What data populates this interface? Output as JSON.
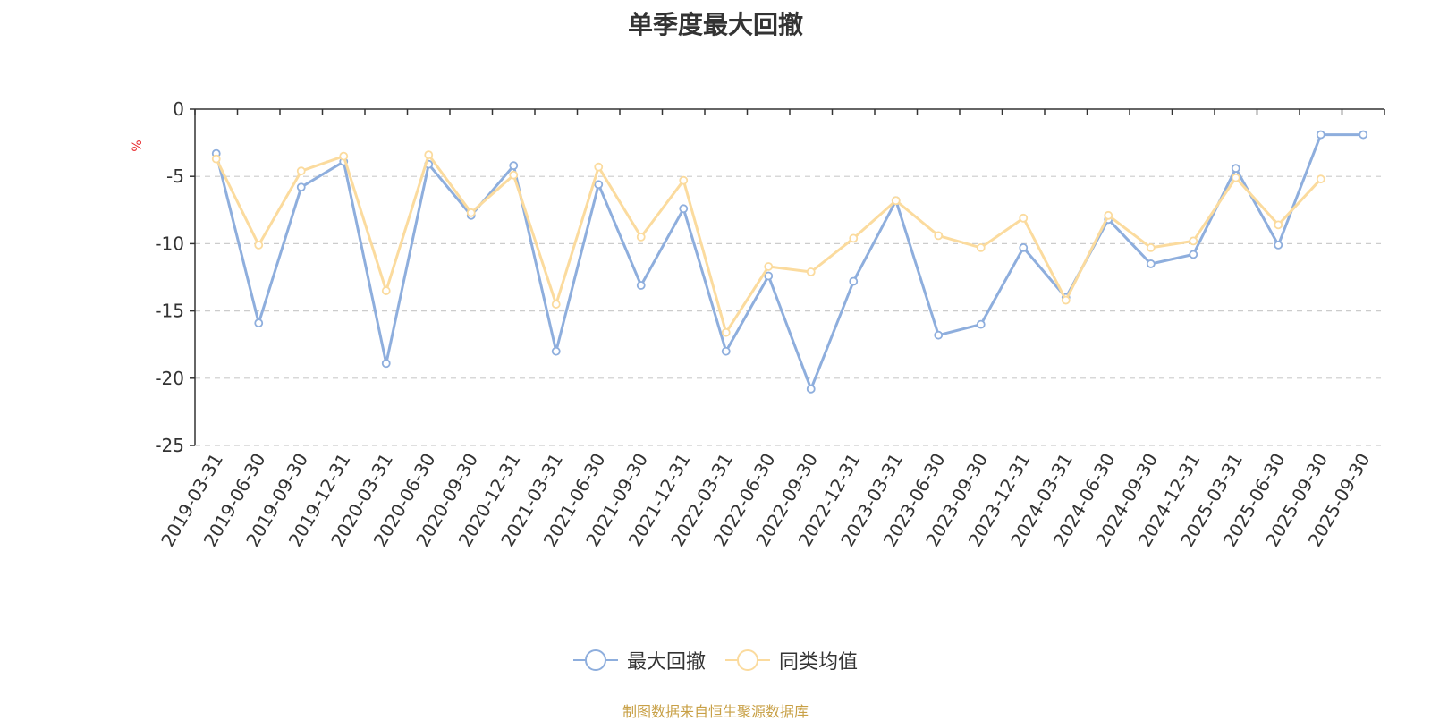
{
  "chart_data": {
    "type": "line",
    "title": "单季度最大回撤",
    "ylabel": "%",
    "xlabel": "",
    "ylim": [
      -25,
      0
    ],
    "yticks": [
      0,
      -5,
      -10,
      -15,
      -20,
      -25
    ],
    "grid": true,
    "legend_position": "bottom-center",
    "categories": [
      "2019-03-31",
      "2019-06-30",
      "2019-09-30",
      "2019-12-31",
      "2020-03-31",
      "2020-06-30",
      "2020-09-30",
      "2020-12-31",
      "2021-03-31",
      "2021-06-30",
      "2021-09-30",
      "2021-12-31",
      "2022-03-31",
      "2022-06-30",
      "2022-09-30",
      "2022-12-31",
      "2023-03-31",
      "2023-06-30",
      "2023-09-30",
      "2023-12-31",
      "2024-03-31",
      "2024-06-30",
      "2024-09-30",
      "2024-12-31",
      "2025-03-31",
      "2025-06-30",
      "2025-09-30",
      "2025-09-30"
    ],
    "series": [
      {
        "name": "最大回撤",
        "color": "#8eaedd",
        "values": [
          -3.3,
          -15.9,
          -5.8,
          -3.9,
          -18.9,
          -4.1,
          -7.9,
          -4.2,
          -18.0,
          -5.6,
          -13.1,
          -7.4,
          -18.0,
          -12.4,
          -20.8,
          -12.8,
          -6.8,
          -16.8,
          -16.0,
          -10.3,
          -14.0,
          -8.2,
          -11.5,
          -10.8,
          -4.4,
          -10.1,
          -1.9,
          -1.9
        ]
      },
      {
        "name": "同类均值",
        "color": "#fbdb9e",
        "values": [
          -3.7,
          -10.1,
          -4.6,
          -3.5,
          -13.5,
          -3.4,
          -7.7,
          -4.9,
          -14.5,
          -4.3,
          -9.5,
          -5.3,
          -16.6,
          -11.7,
          -12.1,
          -9.6,
          -6.8,
          -9.4,
          -10.3,
          -8.1,
          -14.2,
          -7.9,
          -10.3,
          -9.8,
          -5.1,
          -8.6,
          -5.2,
          null
        ]
      }
    ]
  },
  "legend": {
    "item1": "最大回撤",
    "item2": "同类均值",
    "color1": "#8eaedd",
    "color2": "#fbdb9e"
  },
  "source_text": "制图数据来自恒生聚源数据库"
}
